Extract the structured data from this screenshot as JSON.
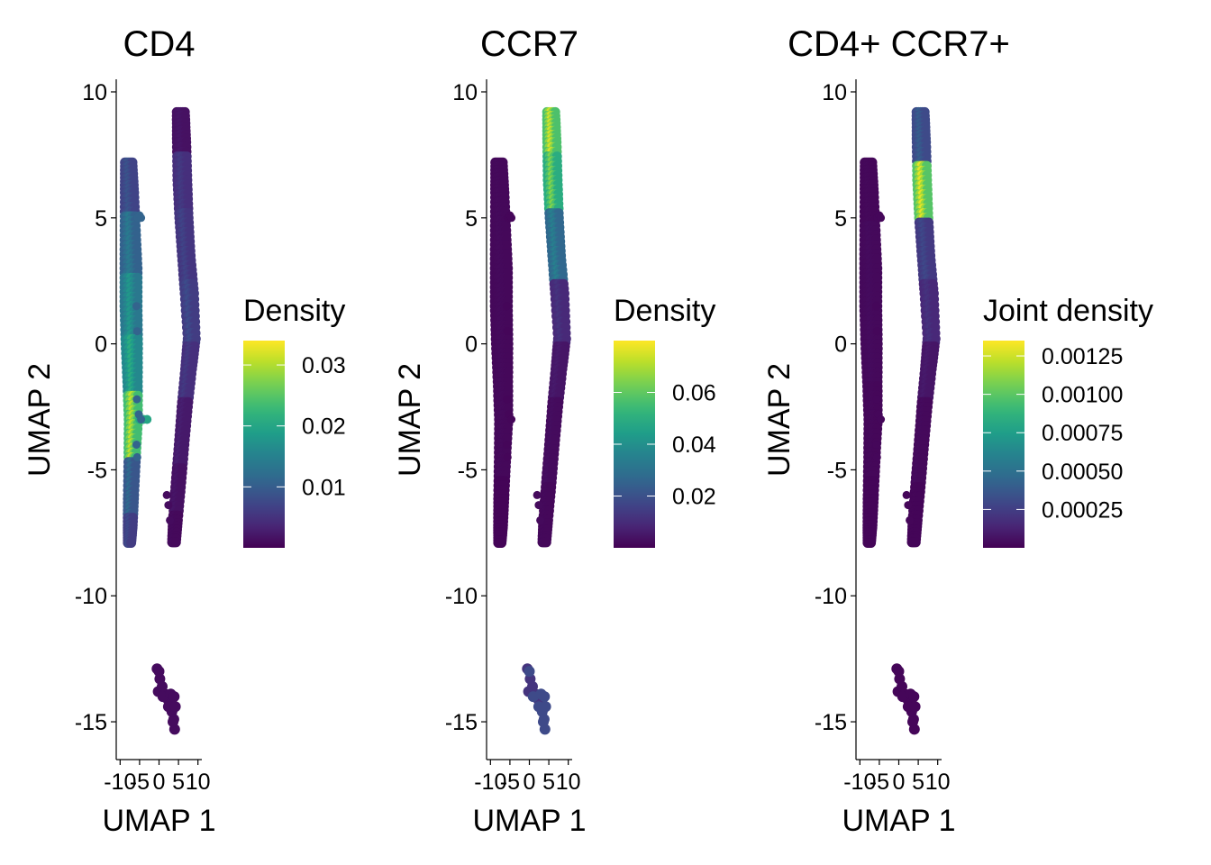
{
  "chart_data": [
    {
      "type": "scatter",
      "title": "CD4",
      "xlabel": "UMAP 1",
      "ylabel": "UMAP 2",
      "xlim": [
        -11,
        11
      ],
      "ylim": [
        -16.5,
        10.5
      ],
      "x_ticks": [
        -10,
        -5,
        0,
        5,
        10
      ],
      "x_tick_labels": [
        "-10",
        "-5",
        "0",
        "5",
        "10"
      ],
      "y_ticks": [
        10,
        5,
        0,
        -5,
        -10,
        -15
      ],
      "y_tick_labels": [
        "10",
        "5",
        "0",
        "-5",
        "-10",
        "-15"
      ],
      "grid": false,
      "legend": {
        "title": "Density",
        "placement": "right",
        "range": [
          0,
          0.034
        ],
        "ticks": [
          0.01,
          0.02,
          0.03
        ],
        "tick_labels": [
          "0.01",
          "0.02",
          "0.03"
        ],
        "colormap": "viridis"
      },
      "clusters": [
        {
          "name": "left strip",
          "points": [
            [
              -7.5,
              6.5
            ],
            [
              -7.2,
              4
            ],
            [
              -7,
              1.5
            ],
            [
              -6.8,
              -1
            ],
            [
              -6.5,
              -3
            ],
            [
              -7,
              -6
            ],
            [
              -7.3,
              -7.5
            ]
          ],
          "density": [
            0.009,
            0.014,
            0.018,
            0.021,
            0.031,
            0.012,
            0.008
          ]
        },
        {
          "name": "middle small",
          "points": [
            [
              -4,
              -3
            ]
          ],
          "density": [
            0.02
          ]
        },
        {
          "name": "right strip",
          "points": [
            [
              5.5,
              8.5
            ],
            [
              6,
              6.5
            ],
            [
              6.5,
              4
            ],
            [
              7.5,
              1
            ],
            [
              8.5,
              -1
            ],
            [
              6,
              -3.5
            ],
            [
              4.5,
              -6
            ],
            [
              3,
              -7.5
            ]
          ],
          "density": [
            0.002,
            0.006,
            0.007,
            0.008,
            0.006,
            0.003,
            0.002,
            0.001
          ]
        },
        {
          "name": "bottom blob",
          "points": [
            [
              0,
              -13.5
            ],
            [
              3.5,
              -14.5
            ]
          ],
          "density": [
            0.001,
            0.001
          ]
        }
      ]
    },
    {
      "type": "scatter",
      "title": "CCR7",
      "xlabel": "UMAP 1",
      "ylabel": "UMAP 2",
      "xlim": [
        -11,
        11
      ],
      "ylim": [
        -16.5,
        10.5
      ],
      "x_ticks": [
        -10,
        -5,
        0,
        5,
        10
      ],
      "x_tick_labels": [
        "-10",
        "-5",
        "0",
        "5",
        "10"
      ],
      "y_ticks": [
        10,
        5,
        0,
        -5,
        -10,
        -15
      ],
      "y_tick_labels": [
        "10",
        "5",
        "0",
        "-5",
        "-10",
        "-15"
      ],
      "grid": false,
      "legend": {
        "title": "Density",
        "placement": "right",
        "range": [
          0,
          0.08
        ],
        "ticks": [
          0.02,
          0.04,
          0.06
        ],
        "tick_labels": [
          "0.02",
          "0.04",
          "0.06"
        ],
        "colormap": "viridis"
      },
      "clusters": [
        {
          "name": "left strip",
          "points": [
            [
              -7.5,
              6.5
            ],
            [
              -7,
              3
            ],
            [
              -6.8,
              0
            ],
            [
              -6.5,
              -3
            ],
            [
              -7.3,
              -7.5
            ]
          ],
          "density": [
            0.002,
            0.002,
            0.002,
            0.002,
            0.001
          ]
        },
        {
          "name": "right strip",
          "points": [
            [
              5.5,
              8.5
            ],
            [
              6,
              6.5
            ],
            [
              6.5,
              4
            ],
            [
              7.5,
              1
            ],
            [
              8.5,
              -1
            ],
            [
              6,
              -3.5
            ],
            [
              3,
              -7.5
            ]
          ],
          "density": [
            0.075,
            0.065,
            0.035,
            0.012,
            0.006,
            0.003,
            0.002
          ]
        },
        {
          "name": "bottom blob",
          "points": [
            [
              0,
              -13.5
            ],
            [
              3.5,
              -14.5
            ]
          ],
          "density": [
            0.012,
            0.018
          ]
        }
      ]
    },
    {
      "type": "scatter",
      "title": "CD4+ CCR7+",
      "xlabel": "UMAP 1",
      "ylabel": "UMAP 2",
      "xlim": [
        -11,
        11
      ],
      "ylim": [
        -16.5,
        10.5
      ],
      "x_ticks": [
        -10,
        -5,
        0,
        5,
        10
      ],
      "x_tick_labels": [
        "-10",
        "-5",
        "0",
        "5",
        "10"
      ],
      "y_ticks": [
        10,
        5,
        0,
        -5,
        -10,
        -15
      ],
      "y_tick_labels": [
        "10",
        "5",
        "0",
        "-5",
        "-10",
        "-15"
      ],
      "grid": false,
      "legend": {
        "title": "Joint density",
        "placement": "right",
        "range": [
          0,
          0.00135
        ],
        "ticks": [
          0.00025,
          0.0005,
          0.00075,
          0.001,
          0.00125
        ],
        "tick_labels": [
          "0.00025",
          "0.00050",
          "0.00075",
          "0.00100",
          "0.00125"
        ],
        "colormap": "viridis"
      },
      "clusters": [
        {
          "name": "left strip",
          "points": [
            [
              -7.5,
              6.5
            ],
            [
              -7,
              3
            ],
            [
              -6.8,
              0
            ],
            [
              -6.5,
              -3
            ],
            [
              -7.3,
              -7.5
            ]
          ],
          "density": [
            3e-05,
            4e-05,
            4e-05,
            3e-05,
            2e-05
          ]
        },
        {
          "name": "right strip",
          "points": [
            [
              5.5,
              8.5
            ],
            [
              6,
              6
            ],
            [
              6.5,
              4
            ],
            [
              7.5,
              1
            ],
            [
              8.5,
              -1
            ],
            [
              6,
              -3.5
            ],
            [
              3,
              -7.5
            ]
          ],
          "density": [
            0.0004,
            0.0013,
            0.0003,
            0.0002,
            0.0001,
            4e-05,
            2e-05
          ]
        },
        {
          "name": "bottom blob",
          "points": [
            [
              0,
              -13.5
            ],
            [
              3.5,
              -14.5
            ]
          ],
          "density": [
            2e-05,
            2e-05
          ]
        }
      ]
    }
  ]
}
